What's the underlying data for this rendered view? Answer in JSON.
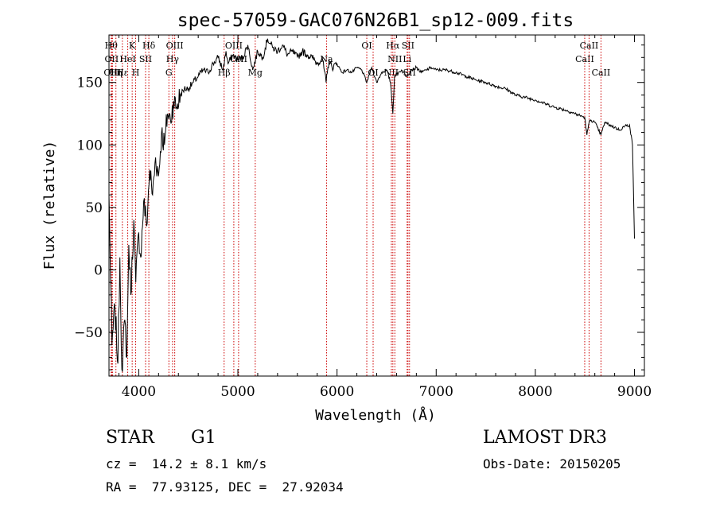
{
  "chart_data": {
    "type": "line",
    "title": "spec-57059-GAC076N26B1_sp12-009.fits",
    "xlabel": "Wavelength (Å)",
    "ylabel": "Flux (relative)",
    "xlim": [
      3700,
      9100
    ],
    "ylim": [
      -85,
      188
    ],
    "xticks": [
      4000,
      5000,
      6000,
      7000,
      8000,
      9000
    ],
    "xtick_labels": [
      "4000",
      "5000",
      "6000",
      "7000",
      "8000",
      "9000"
    ],
    "yticks": [
      -50,
      0,
      50,
      100,
      150
    ],
    "ytick_labels": [
      "−50",
      "0",
      "50",
      "100",
      "150"
    ],
    "grid": false,
    "series": [
      {
        "name": "spectrum",
        "x": [
          3700,
          3730,
          3760,
          3790,
          3810,
          3830,
          3860,
          3880,
          3900,
          3920,
          3950,
          3970,
          4000,
          4020,
          4050,
          4080,
          4110,
          4140,
          4170,
          4200,
          4230,
          4260,
          4290,
          4320,
          4350,
          4380,
          4420,
          4460,
          4500,
          4550,
          4600,
          4650,
          4700,
          4750,
          4800,
          4850,
          4880,
          4900,
          4950,
          5000,
          5050,
          5100,
          5150,
          5200,
          5250,
          5300,
          5350,
          5400,
          5450,
          5500,
          5550,
          5600,
          5650,
          5700,
          5750,
          5800,
          5850,
          5890,
          5920,
          5950,
          6000,
          6050,
          6100,
          6150,
          6200,
          6250,
          6300,
          6350,
          6400,
          6450,
          6500,
          6540,
          6563,
          6580,
          6620,
          6650,
          6700,
          6750,
          6800,
          6850,
          6900,
          6950,
          7000,
          7100,
          7200,
          7300,
          7400,
          7500,
          7600,
          7700,
          7800,
          7900,
          8000,
          8100,
          8200,
          8300,
          8400,
          8498,
          8520,
          8542,
          8560,
          8600,
          8662,
          8700,
          8750,
          8800,
          8850,
          8900,
          8950,
          8980,
          9000
        ],
        "y": [
          60,
          -60,
          -30,
          -75,
          10,
          -80,
          -40,
          -70,
          20,
          -20,
          40,
          -10,
          30,
          10,
          55,
          35,
          80,
          60,
          90,
          75,
          110,
          100,
          125,
          120,
          135,
          130,
          140,
          145,
          145,
          150,
          155,
          160,
          158,
          165,
          170,
          160,
          175,
          165,
          172,
          168,
          170,
          180,
          160,
          175,
          170,
          185,
          178,
          175,
          180,
          172,
          175,
          170,
          175,
          172,
          170,
          165,
          170,
          150,
          168,
          162,
          165,
          158,
          160,
          158,
          162,
          160,
          150,
          162,
          150,
          158,
          160,
          150,
          125,
          155,
          158,
          160,
          155,
          160,
          162,
          158,
          160,
          162,
          160,
          160,
          158,
          155,
          152,
          150,
          147,
          145,
          140,
          138,
          136,
          133,
          130,
          128,
          125,
          122,
          108,
          118,
          120,
          118,
          108,
          118,
          116,
          114,
          112,
          115,
          116,
          100,
          25
        ]
      }
    ],
    "lines": [
      {
        "w": 3722,
        "label": "Hθ",
        "row": 0
      },
      {
        "w": 3727,
        "label": "OII",
        "row": 1
      },
      {
        "w": 3735,
        "label": "OIII",
        "row": 2
      },
      {
        "w": 3770,
        "label": "Hη",
        "row": 2
      },
      {
        "w": 3835,
        "label": "Hε",
        "row": 2
      },
      {
        "w": 3889,
        "label": "HeI",
        "row": 1
      },
      {
        "w": 3934,
        "label": "K",
        "row": 0
      },
      {
        "w": 3969,
        "label": "H",
        "row": 2
      },
      {
        "w": 4069,
        "label": "SII",
        "row": 1
      },
      {
        "w": 4102,
        "label": "Hδ",
        "row": 0
      },
      {
        "w": 4304,
        "label": "G",
        "row": 2
      },
      {
        "w": 4341,
        "label": "Hγ",
        "row": 1
      },
      {
        "w": 4363,
        "label": "OIII",
        "row": 0
      },
      {
        "w": 4861,
        "label": "Hβ",
        "row": 2
      },
      {
        "w": 4959,
        "label": "OIII",
        "row": 0
      },
      {
        "w": 5007,
        "label": "OIII",
        "row": 1
      },
      {
        "w": 5175,
        "label": "Mg",
        "row": 2
      },
      {
        "w": 5894,
        "label": "Na",
        "row": 1
      },
      {
        "w": 6300,
        "label": "OI",
        "row": 0
      },
      {
        "w": 6364,
        "label": "OI",
        "row": 2
      },
      {
        "w": 6548,
        "label": "NII",
        "row": 2
      },
      {
        "w": 6563,
        "label": "Hα",
        "row": 0
      },
      {
        "w": 6583,
        "label": "NII",
        "row": 1
      },
      {
        "w": 6707,
        "label": "Li",
        "row": 1
      },
      {
        "w": 6716,
        "label": "SII",
        "row": 0
      },
      {
        "w": 6731,
        "label": "SII",
        "row": 2
      },
      {
        "w": 8498,
        "label": "CaII",
        "row": 1
      },
      {
        "w": 8542,
        "label": "CaII",
        "row": 0
      },
      {
        "w": 8662,
        "label": "CaII",
        "row": 2
      }
    ]
  },
  "info": {
    "object_class": "STAR",
    "subclass": "G1",
    "survey": "LAMOST DR3",
    "redshift_text": "cz =  14.2 ± 8.1 km/s",
    "obs_date_text": "Obs-Date: 20150205",
    "coords_text": "RA =  77.93125, DEC =  27.92034"
  }
}
